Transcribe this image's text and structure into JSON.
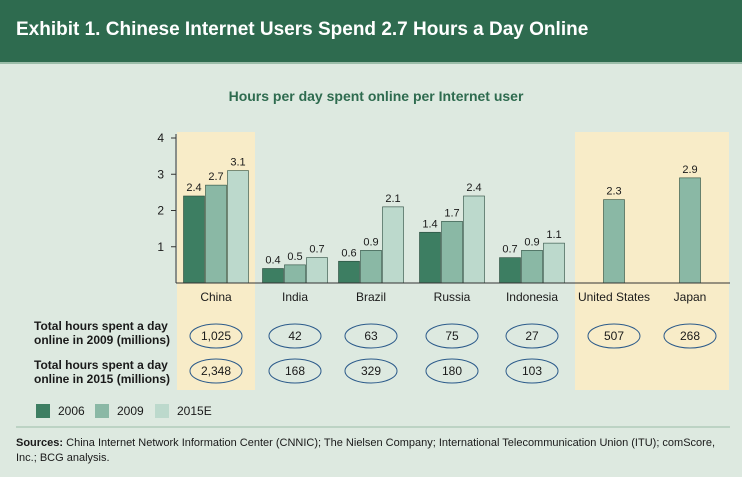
{
  "header": {
    "title": "Exhibit 1. Chinese Internet Users Spend 2.7 Hours a Day Online"
  },
  "colors": {
    "header_bg": "#2e6b4f",
    "background": "#dde9e0",
    "highlight": "#f8ecc8",
    "title_green": "#2e6b4f",
    "series_2006": "#3d7e62",
    "series_2009": "#8ab8a5",
    "series_2015E": "#bcd9cc"
  },
  "chart_data": {
    "type": "bar",
    "title": "Hours per day spent online per Internet user",
    "categories": [
      "China",
      "India",
      "Brazil",
      "Russia",
      "Indonesia",
      "United States",
      "Japan"
    ],
    "highlighted_categories": [
      "China",
      "United States",
      "Japan"
    ],
    "ylim": [
      0,
      4
    ],
    "yticks": [
      1,
      2,
      3,
      4
    ],
    "grid": false,
    "legend_placement": "bottom-left",
    "series": [
      {
        "name": "2006",
        "values": [
          2.4,
          0.4,
          0.6,
          1.4,
          0.7,
          null,
          null
        ],
        "labels": [
          "2.4",
          "0.4",
          "0.6",
          "1.4",
          "0.7",
          "",
          ""
        ]
      },
      {
        "name": "2009",
        "values": [
          2.7,
          0.5,
          0.9,
          1.7,
          0.9,
          2.3,
          2.9
        ],
        "labels": [
          "2.7",
          "0.5",
          "0.9",
          "1.7",
          "0.9",
          "2.3",
          "2.9"
        ]
      },
      {
        "name": "2015E",
        "values": [
          3.1,
          0.7,
          2.1,
          2.4,
          1.1,
          null,
          null
        ],
        "labels": [
          "3.1",
          "0.7",
          "2.1",
          "2.4",
          "1.1",
          "",
          ""
        ]
      }
    ]
  },
  "table": {
    "rows": [
      {
        "label_line1": "Total hours spent a day",
        "label_line2": "online in 2009 (millions)",
        "values": [
          "1,025",
          "42",
          "63",
          "75",
          "27",
          "507",
          "268"
        ]
      },
      {
        "label_line1": "Total hours spent a day",
        "label_line2": "online in 2015 (millions)",
        "values": [
          "2,348",
          "168",
          "329",
          "180",
          "103",
          "",
          ""
        ]
      }
    ]
  },
  "sources": {
    "label": "Sources:",
    "text": "China Internet Network Information Center (CNNIC); The Nielsen Company; International Telecommunication Union (ITU); comScore, Inc.; BCG analysis."
  }
}
